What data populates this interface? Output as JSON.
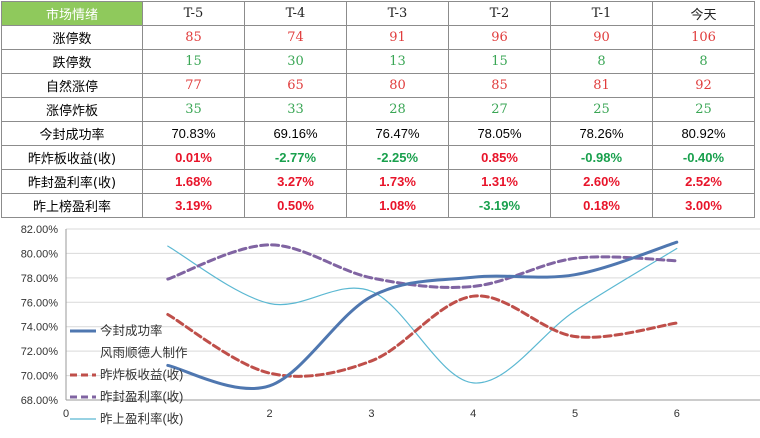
{
  "table": {
    "corner": "市场情绪",
    "columns": [
      "T-5",
      "T-4",
      "T-3",
      "T-2",
      "T-1",
      "今天"
    ],
    "rows": [
      {
        "label": "涨停数",
        "style": "int-red",
        "values": [
          "85",
          "74",
          "91",
          "96",
          "90",
          "106"
        ]
      },
      {
        "label": "跌停数",
        "style": "int-green",
        "values": [
          "15",
          "30",
          "13",
          "15",
          "8",
          "8"
        ]
      },
      {
        "label": "自然涨停",
        "style": "int-red",
        "values": [
          "77",
          "65",
          "80",
          "85",
          "81",
          "92"
        ]
      },
      {
        "label": "涨停炸板",
        "style": "int-green",
        "values": [
          "35",
          "33",
          "28",
          "27",
          "25",
          "25"
        ]
      },
      {
        "label": "今封成功率",
        "style": "plain",
        "values": [
          "70.83%",
          "69.16%",
          "76.47%",
          "78.05%",
          "78.26%",
          "80.92%"
        ]
      },
      {
        "label": "昨炸板收益(收)",
        "style": "signed",
        "values": [
          "0.01%",
          "-2.77%",
          "-2.25%",
          "0.85%",
          "-0.98%",
          "-0.40%"
        ]
      },
      {
        "label": "昨封盈利率(收)",
        "style": "signed",
        "values": [
          "1.68%",
          "3.27%",
          "1.73%",
          "1.31%",
          "2.60%",
          "2.52%"
        ]
      },
      {
        "label": "昨上榜盈利率",
        "style": "signed",
        "values": [
          "3.19%",
          "0.50%",
          "1.08%",
          "-3.19%",
          "0.18%",
          "3.00%"
        ]
      }
    ]
  },
  "colors": {
    "corner_bg": "#8fc95c",
    "up": "#e8142a",
    "down": "#19a04d"
  },
  "chart_data": {
    "type": "line",
    "x": [
      1,
      2,
      3,
      4,
      5,
      6
    ],
    "xlim": [
      0,
      7
    ],
    "xticks": [
      "0",
      "2",
      "3",
      "4",
      "5",
      "6"
    ],
    "ylim": [
      68,
      82
    ],
    "yticks": [
      "68.00%",
      "70.00%",
      "72.00%",
      "74.00%",
      "76.00%",
      "78.00%",
      "80.00%",
      "82.00%"
    ],
    "grid": "horizontal",
    "legend_position": "left-bottom",
    "watermark": "风雨顺德人制作",
    "series": [
      {
        "name": "今封成功率",
        "values": [
          70.83,
          69.16,
          76.47,
          78.05,
          78.26,
          80.92
        ],
        "color": "#4f77b0",
        "style": "solid-thick"
      },
      {
        "name": "昨炸板收益(收)",
        "values": [
          75.0,
          70.2,
          71.2,
          76.5,
          73.2,
          74.3
        ],
        "color": "#bf4f4a",
        "style": "dashed"
      },
      {
        "name": "昨封盈利率(收)",
        "values": [
          77.9,
          80.7,
          78.0,
          77.3,
          79.6,
          79.4
        ],
        "color": "#8064a2",
        "style": "dashed"
      },
      {
        "name": "昨上盈利率(收)",
        "values": [
          80.6,
          75.9,
          76.9,
          69.4,
          75.3,
          80.4
        ],
        "color": "#5bb8d2",
        "style": "solid-thin"
      }
    ]
  }
}
